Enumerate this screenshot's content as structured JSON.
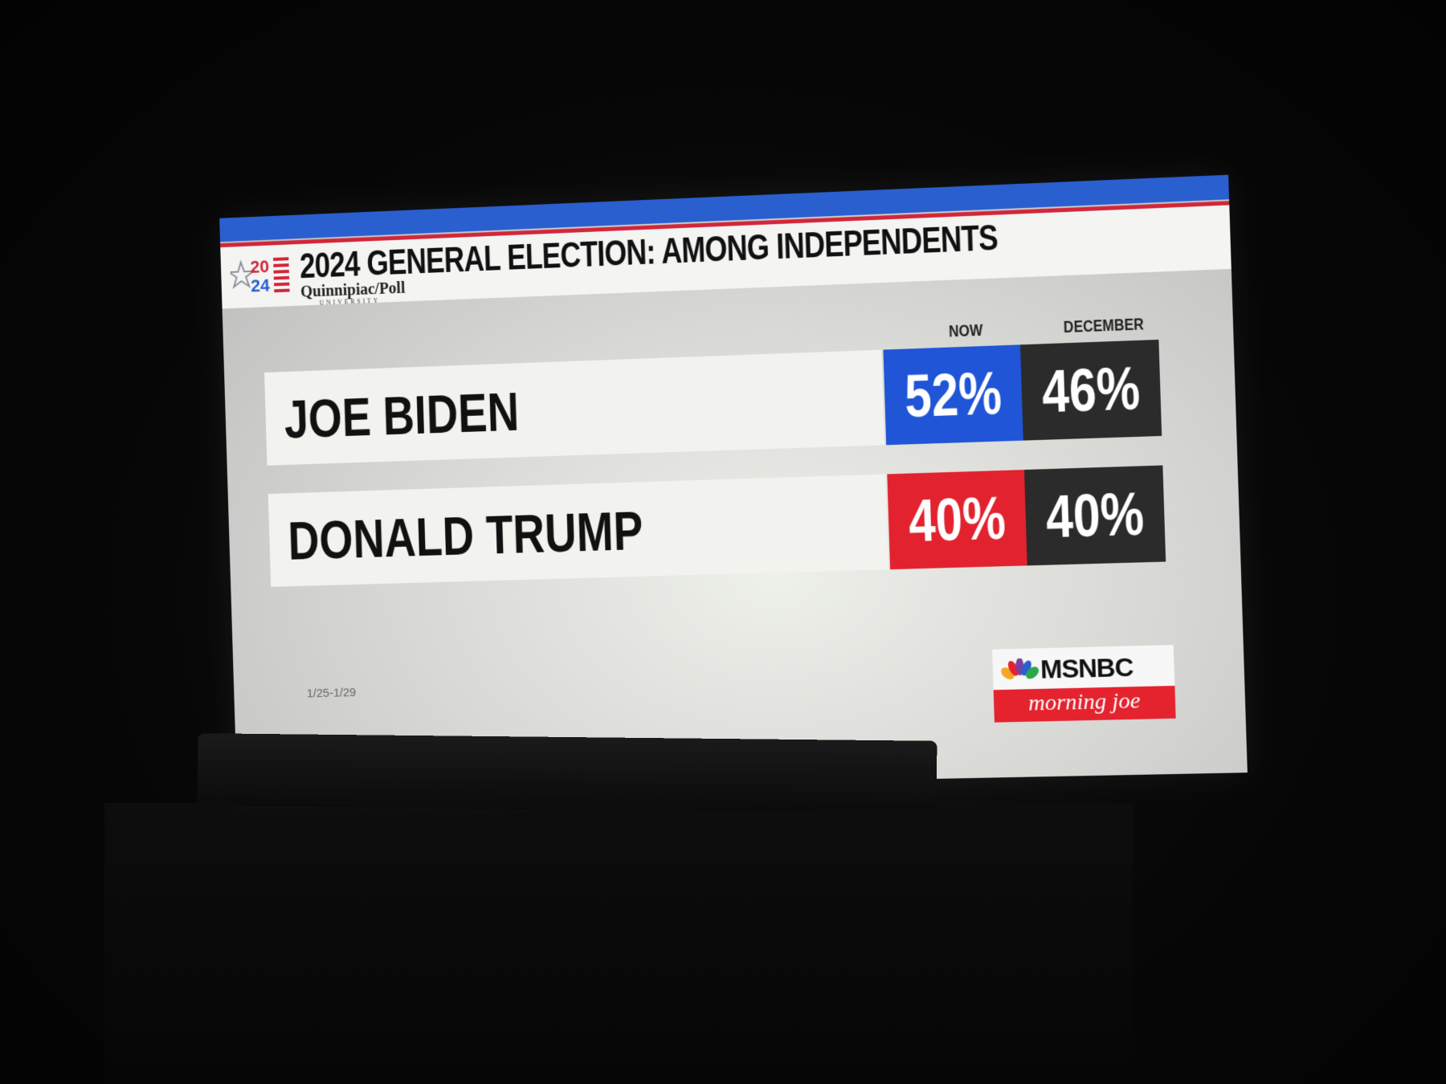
{
  "header": {
    "title": "2024 GENERAL ELECTION: AMONG INDEPENDENTS",
    "logo_year_top": "20",
    "logo_year_bottom": "24",
    "poll_name": "Quinnipiac/Poll",
    "poll_sub": "UNIVERSITY"
  },
  "columns": {
    "now": "NOW",
    "december": "DECEMBER"
  },
  "rows": [
    {
      "name": "JOE BIDEN",
      "now": "52%",
      "december": "46%",
      "now_color": "#1f55d6"
    },
    {
      "name": "DONALD TRUMP",
      "now": "40%",
      "december": "40%",
      "now_color": "#e2232f"
    }
  ],
  "date_range": "1/25-1/29",
  "branding": {
    "network": "MSNBC",
    "show": "morning joe"
  }
}
